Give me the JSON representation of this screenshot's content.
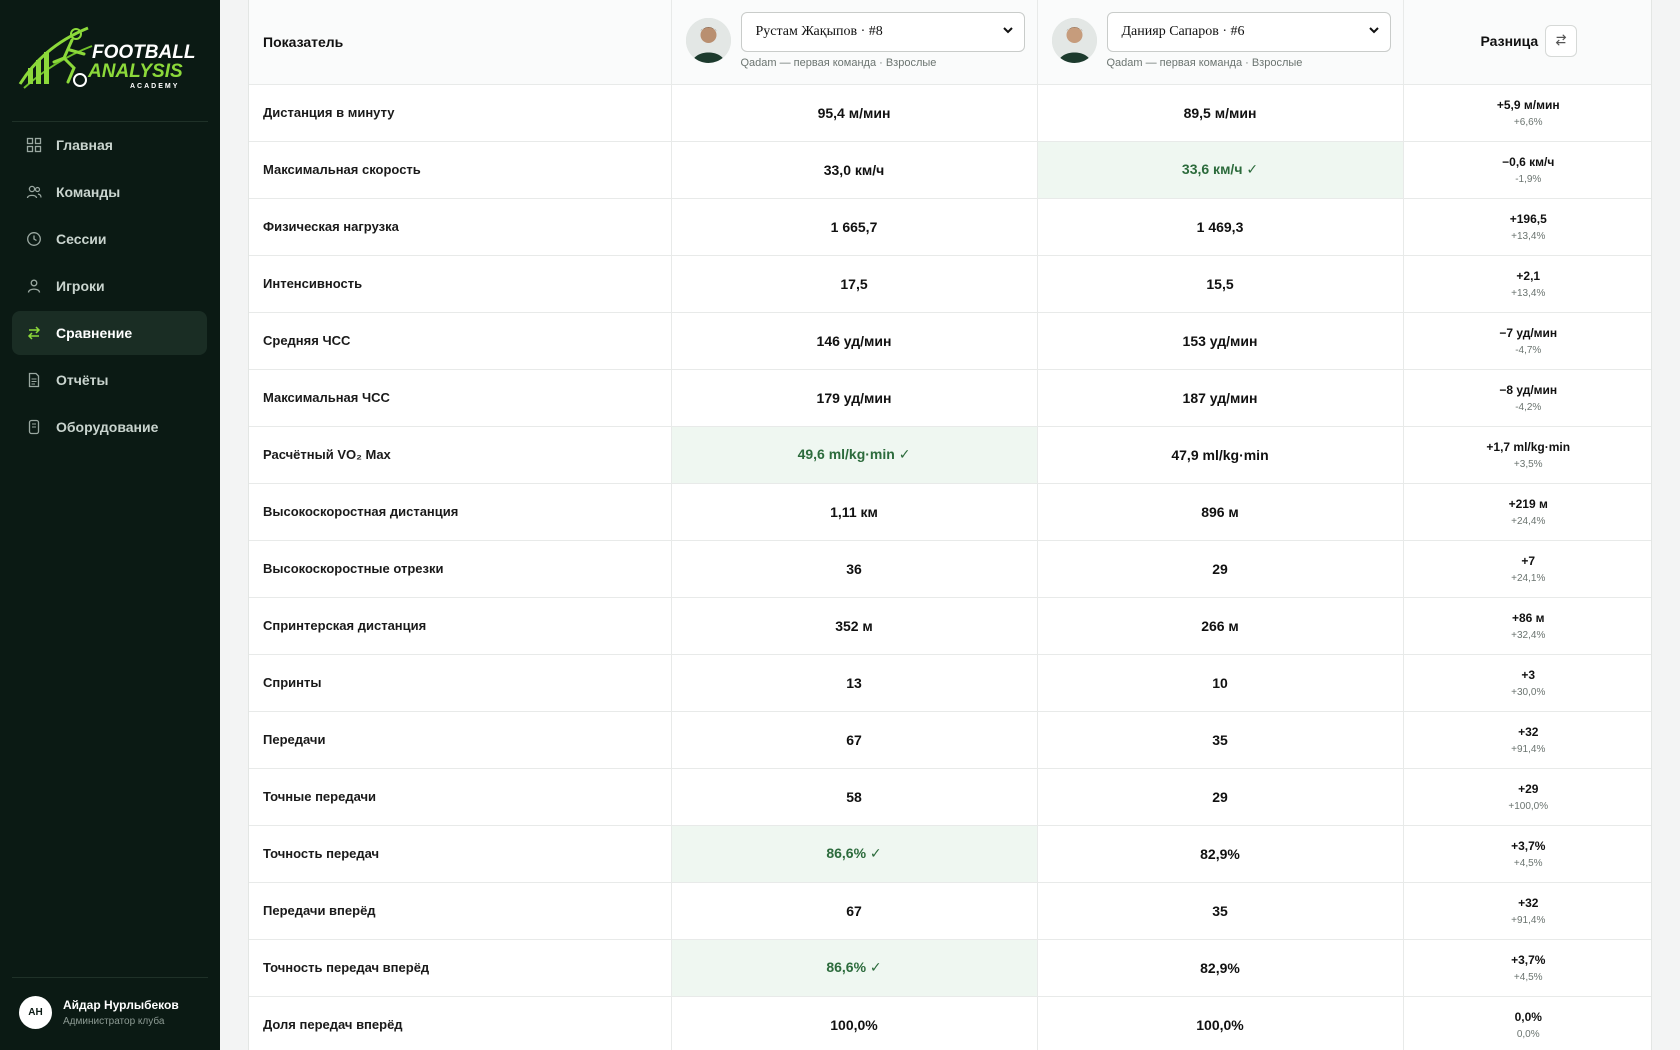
{
  "sidebar": {
    "logo": {
      "line1": "FOOTBALL",
      "line2": "ANALYSIS",
      "line3": "ACADEMY"
    },
    "items": [
      {
        "label": "Главная",
        "icon": "grid-icon",
        "active": false
      },
      {
        "label": "Команды",
        "icon": "users-icon",
        "active": false
      },
      {
        "label": "Сессии",
        "icon": "clock-icon",
        "active": false
      },
      {
        "label": "Игроки",
        "icon": "user-icon",
        "active": false
      },
      {
        "label": "Сравнение",
        "icon": "swap-icon",
        "active": true
      },
      {
        "label": "Отчёты",
        "icon": "document-icon",
        "active": false
      },
      {
        "label": "Оборудование",
        "icon": "device-icon",
        "active": false
      }
    ],
    "user": {
      "initials": "АН",
      "name": "Айдар Нурлыбеков",
      "role": "Администратор клуба"
    }
  },
  "table": {
    "header": {
      "metric": "Показатель",
      "player_a": {
        "selected": "Рустам Жақыпов · #8",
        "sub": "Qadam — первая команда · Взрослые"
      },
      "player_b": {
        "selected": "Данияр Сапаров · #6",
        "sub": "Qadam — первая команда · Взрослые"
      },
      "diff": "Разница"
    },
    "rows": [
      {
        "metric": "Дистанция в минуту",
        "a": "95,4 м/мин",
        "b": "89,5 м/мин",
        "best": "",
        "diff": "+5,9 м/мин",
        "pct": "+6,6%"
      },
      {
        "metric": "Максимальная скорость",
        "a": "33,0 км/ч",
        "b": "33,6 км/ч ✓",
        "best": "b",
        "diff": "−0,6 км/ч",
        "pct": "-1,9%"
      },
      {
        "metric": "Физическая нагрузка",
        "a": "1 665,7",
        "b": "1 469,3",
        "best": "",
        "diff": "+196,5",
        "pct": "+13,4%"
      },
      {
        "metric": "Интенсивность",
        "a": "17,5",
        "b": "15,5",
        "best": "",
        "diff": "+2,1",
        "pct": "+13,4%"
      },
      {
        "metric": "Средняя ЧСС",
        "a": "146 уд/мин",
        "b": "153 уд/мин",
        "best": "",
        "diff": "−7 уд/мин",
        "pct": "-4,7%"
      },
      {
        "metric": "Максимальная ЧСС",
        "a": "179 уд/мин",
        "b": "187 уд/мин",
        "best": "",
        "diff": "−8 уд/мин",
        "pct": "-4,2%"
      },
      {
        "metric": "Расчётный VO₂ Max",
        "a": "49,6 ml/kg·min ✓",
        "b": "47,9 ml/kg·min",
        "best": "a",
        "diff": "+1,7 ml/kg·min",
        "pct": "+3,5%"
      },
      {
        "metric": "Высокоскоростная дистанция",
        "a": "1,11 км",
        "b": "896 м",
        "best": "",
        "diff": "+219 м",
        "pct": "+24,4%"
      },
      {
        "metric": "Высокоскоростные отрезки",
        "a": "36",
        "b": "29",
        "best": "",
        "diff": "+7",
        "pct": "+24,1%"
      },
      {
        "metric": "Спринтерская дистанция",
        "a": "352 м",
        "b": "266 м",
        "best": "",
        "diff": "+86 м",
        "pct": "+32,4%"
      },
      {
        "metric": "Спринты",
        "a": "13",
        "b": "10",
        "best": "",
        "diff": "+3",
        "pct": "+30,0%"
      },
      {
        "metric": "Передачи",
        "a": "67",
        "b": "35",
        "best": "",
        "diff": "+32",
        "pct": "+91,4%"
      },
      {
        "metric": "Точные передачи",
        "a": "58",
        "b": "29",
        "best": "",
        "diff": "+29",
        "pct": "+100,0%"
      },
      {
        "metric": "Точность передач",
        "a": "86,6% ✓",
        "b": "82,9%",
        "best": "a",
        "diff": "+3,7%",
        "pct": "+4,5%"
      },
      {
        "metric": "Передачи вперёд",
        "a": "67",
        "b": "35",
        "best": "",
        "diff": "+32",
        "pct": "+91,4%"
      },
      {
        "metric": "Точность передач вперёд",
        "a": "86,6% ✓",
        "b": "82,9%",
        "best": "a",
        "diff": "+3,7%",
        "pct": "+4,5%"
      },
      {
        "metric": "Доля передач вперёд",
        "a": "100,0%",
        "b": "100,0%",
        "best": "",
        "diff": "0,0%",
        "pct": "0,0%"
      }
    ]
  },
  "colors": {
    "sidebar_bg": "#0b1a14",
    "accent": "#8cd93a",
    "best_bg": "#eff7f1",
    "best_text": "#2c6b3c"
  }
}
